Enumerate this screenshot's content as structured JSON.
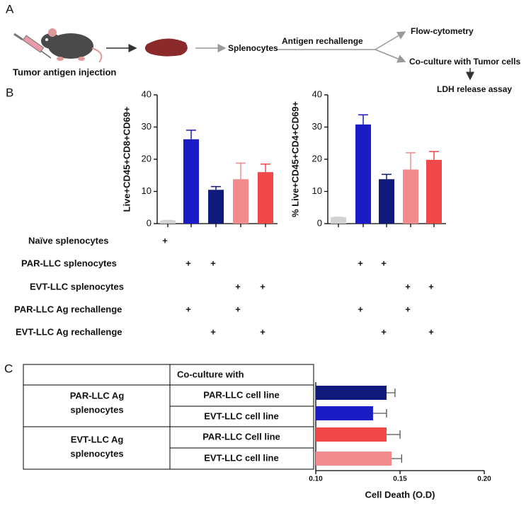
{
  "panels": [
    "A",
    "B",
    "C"
  ],
  "workflow": {
    "injection": "Tumor antigen injection",
    "splenocytes": "Splenocytes",
    "rechallenge": "Antigen rechallenge",
    "flow": "Flow-cytometry",
    "coculture": "Co-culture with Tumor cells",
    "ldh": "LDH release assay"
  },
  "chart_data": [
    {
      "type": "bar",
      "y_label": "Live+CD45+CD8+CD69+",
      "values": [
        1,
        26.2,
        10.5,
        13.8,
        16
      ],
      "errors": [
        0,
        2.8,
        1,
        5,
        2.5
      ],
      "colors": [
        "#d2d2d2",
        "#1c1cc4",
        "#0f1a7a",
        "#f28c8c",
        "#f04848"
      ],
      "ylim": [
        0,
        40
      ],
      "yticks": [
        0,
        10,
        20,
        30,
        40
      ]
    },
    {
      "type": "bar",
      "y_label": "% Live+CD45+CD4+CD69+",
      "values": [
        2,
        30.8,
        13.8,
        16.8,
        19.8
      ],
      "errors": [
        0,
        3,
        1.5,
        5.2,
        2.6
      ],
      "colors": [
        "#d2d2d2",
        "#1c1cc4",
        "#0f1a7a",
        "#f28c8c",
        "#f04848"
      ],
      "ylim": [
        0,
        40
      ],
      "yticks": [
        0,
        10,
        20,
        30,
        40
      ]
    },
    {
      "type": "hbar",
      "x_label": "Cell Death (O.D)",
      "values": [
        0.142,
        0.134,
        0.142,
        0.145
      ],
      "errors": [
        0.005,
        0.008,
        0.008,
        0.006
      ],
      "colors": [
        "#0f1a7a",
        "#1c1cc4",
        "#f04848",
        "#f28c8c"
      ],
      "xlim": [
        0.1,
        0.2
      ],
      "xticks": [
        {
          "value": 0.1,
          "label": "0.10"
        },
        0.15,
        {
          "value": 0.2,
          "label": "0.20"
        }
      ]
    }
  ],
  "conditions": [
    {
      "label": "Naïve splenocytes",
      "cells": [
        "+",
        null,
        null,
        null,
        null,
        null,
        null,
        null,
        null,
        null
      ]
    },
    {
      "label": "PAR-LLC splenocytes",
      "cells": [
        null,
        "+",
        "+",
        null,
        null,
        null,
        "+",
        "+",
        null,
        null
      ]
    },
    {
      "label": "EVT-LLC splenocytes",
      "cells": [
        null,
        null,
        null,
        "+",
        "+",
        null,
        null,
        null,
        "+",
        "+"
      ]
    },
    {
      "label": "PAR-LLC Ag rechallenge",
      "cells": [
        null,
        "+",
        null,
        "+",
        null,
        null,
        "+",
        null,
        "+",
        null
      ]
    },
    {
      "label": "EVT-LLC Ag rechallenge",
      "cells": [
        null,
        null,
        "+",
        null,
        "+",
        null,
        null,
        "+",
        null,
        "+"
      ]
    }
  ],
  "table": {
    "header": "Co-culture with",
    "groups": [
      {
        "label": [
          "PAR-LLC Ag",
          "splenocytes"
        ],
        "rows": [
          "PAR-LLC cell line",
          "EVT-LLC cell line"
        ]
      },
      {
        "label": [
          "EVT-LLC Ag",
          "splenocytes"
        ],
        "rows": [
          "PAR-LLC Cell line",
          "EVT-LLC cell line"
        ]
      }
    ]
  }
}
